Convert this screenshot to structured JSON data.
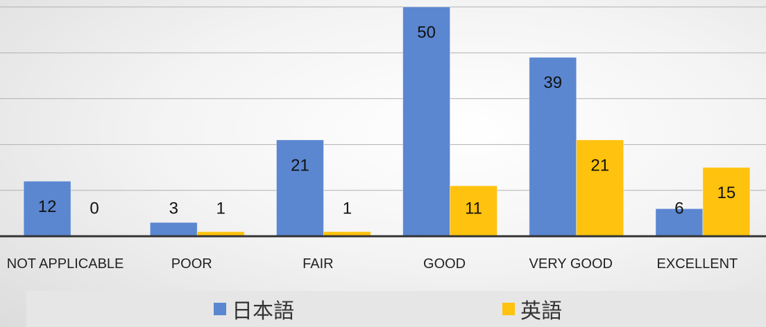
{
  "chart_data": {
    "type": "bar",
    "categories": [
      "NOT APPLICABLE",
      "POOR",
      "FAIR",
      "GOOD",
      "VERY GOOD",
      "EXCELLENT"
    ],
    "series": [
      {
        "name": "日本語",
        "color": "#5b86d0",
        "values": [
          12,
          3,
          21,
          50,
          39,
          6
        ]
      },
      {
        "name": "英語",
        "color": "#ffc20e",
        "values": [
          0,
          1,
          1,
          11,
          21,
          15
        ]
      }
    ],
    "ylim": [
      0,
      50
    ],
    "yticks": [
      0,
      10,
      20,
      30,
      40,
      50
    ],
    "grid": true
  }
}
